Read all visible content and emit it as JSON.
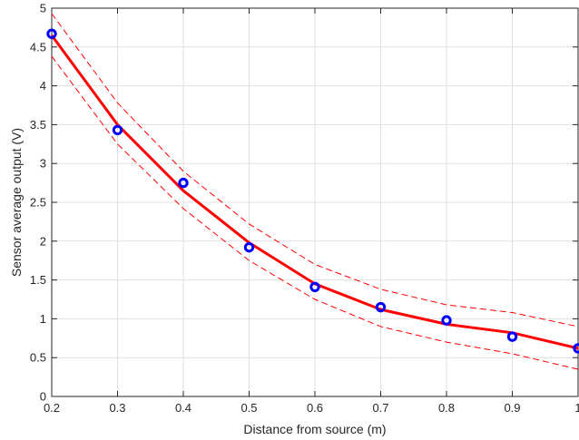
{
  "chart_data": {
    "type": "line",
    "title": "",
    "xlabel": "Distance from source (m)",
    "ylabel": "Sensor average output (V)",
    "xlim": [
      0.2,
      1
    ],
    "ylim": [
      0,
      5
    ],
    "xticks": [
      0.2,
      0.3,
      0.4,
      0.5,
      0.6,
      0.7,
      0.8,
      0.9,
      1
    ],
    "xtick_labels": [
      "0.2",
      "0.3",
      "0.4",
      "0.5",
      "0.6",
      "0.7",
      "0.8",
      "0.9",
      "1"
    ],
    "yticks": [
      0,
      0.5,
      1,
      1.5,
      2,
      2.5,
      3,
      3.5,
      4,
      4.5,
      5
    ],
    "ytick_labels": [
      "0",
      "0.5",
      "1",
      "1.5",
      "2",
      "2.5",
      "3",
      "3.5",
      "4",
      "4.5",
      "5"
    ],
    "grid": true,
    "series": [
      {
        "style": "markers",
        "color": "#0000ff",
        "x": [
          0.2,
          0.3,
          0.4,
          0.5,
          0.6,
          0.7,
          0.8,
          0.9,
          1.0
        ],
        "y": [
          4.67,
          3.43,
          2.75,
          1.92,
          1.41,
          1.15,
          0.98,
          0.77,
          0.62
        ]
      },
      {
        "style": "solid",
        "color": "#ff0000",
        "x": [
          0.2,
          0.3,
          0.4,
          0.5,
          0.6,
          0.7,
          0.8,
          0.9,
          1.0
        ],
        "y": [
          4.65,
          3.5,
          2.65,
          1.98,
          1.45,
          1.12,
          0.93,
          0.82,
          0.62
        ]
      },
      {
        "style": "dashed",
        "color": "#ff0000",
        "x": [
          0.2,
          0.3,
          0.4,
          0.5,
          0.6,
          0.7,
          0.8,
          0.9,
          1.0
        ],
        "y": [
          4.93,
          3.78,
          2.9,
          2.22,
          1.7,
          1.38,
          1.18,
          1.08,
          0.9
        ]
      },
      {
        "style": "dashed",
        "color": "#ff0000",
        "x": [
          0.2,
          0.3,
          0.4,
          0.5,
          0.6,
          0.7,
          0.8,
          0.9,
          1.0
        ],
        "y": [
          4.38,
          3.25,
          2.42,
          1.75,
          1.25,
          0.9,
          0.7,
          0.55,
          0.35
        ]
      }
    ]
  }
}
